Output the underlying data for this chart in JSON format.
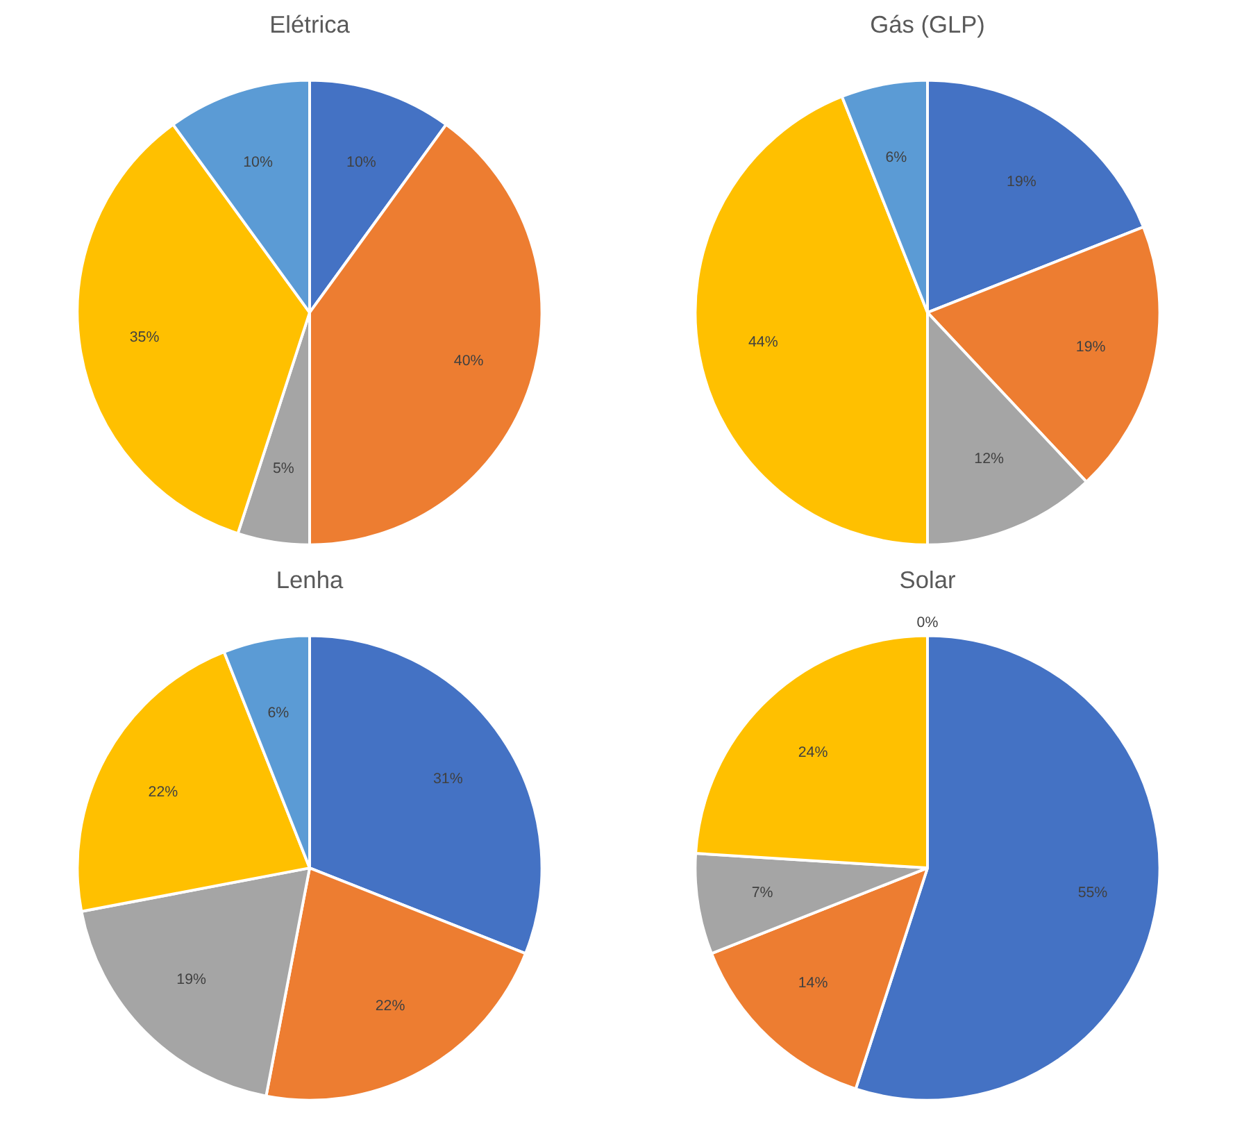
{
  "chart_data": [
    {
      "type": "pie",
      "title": "Elétrica",
      "categories": [
        null,
        null,
        null,
        null,
        null
      ],
      "values": [
        10,
        40,
        5,
        35,
        10
      ],
      "value_labels": [
        "10%",
        "40%",
        "5%",
        "35%",
        "10%"
      ],
      "colors": [
        "#4472c4",
        "#ed7d31",
        "#a5a5a5",
        "#ffc000",
        "#5b9bd5"
      ]
    },
    {
      "type": "pie",
      "title": "Gás (GLP)",
      "categories": [
        null,
        null,
        null,
        null,
        null
      ],
      "values": [
        19,
        19,
        12,
        44,
        6
      ],
      "value_labels": [
        "19%",
        "19%",
        "12%",
        "44%",
        "6%"
      ],
      "colors": [
        "#4472c4",
        "#ed7d31",
        "#a5a5a5",
        "#ffc000",
        "#5b9bd5"
      ]
    },
    {
      "type": "pie",
      "title": "Lenha",
      "categories": [
        null,
        null,
        null,
        null,
        null
      ],
      "values": [
        31,
        22,
        19,
        22,
        6
      ],
      "value_labels": [
        "31%",
        "22%",
        "19%",
        "22%",
        "6%"
      ],
      "colors": [
        "#4472c4",
        "#ed7d31",
        "#a5a5a5",
        "#ffc000",
        "#5b9bd5"
      ]
    },
    {
      "type": "pie",
      "title": "Solar",
      "categories": [
        null,
        null,
        null,
        null,
        null
      ],
      "values": [
        55,
        14,
        7,
        24,
        0
      ],
      "value_labels": [
        "55%",
        "14%",
        "7%",
        "24%",
        "0%"
      ],
      "colors": [
        "#4472c4",
        "#ed7d31",
        "#a5a5a5",
        "#ffc000",
        "#5b9bd5"
      ]
    }
  ]
}
